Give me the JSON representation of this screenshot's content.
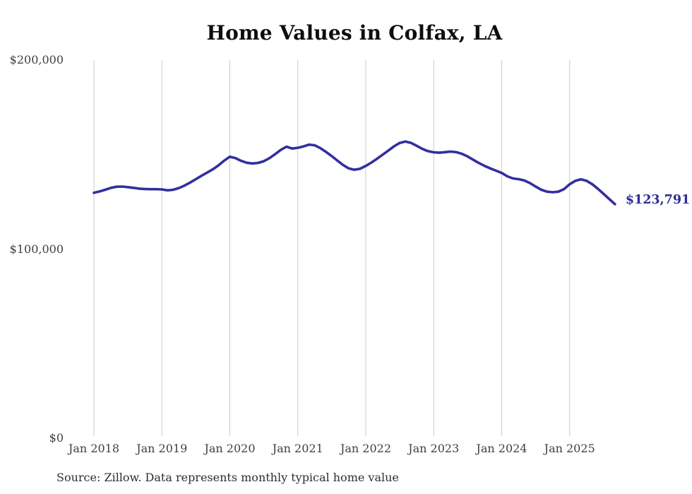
{
  "chart_data": {
    "type": "line",
    "title": "Home Values in Colfax, LA",
    "xlabel": "",
    "ylabel": "",
    "x_start": "2018-01",
    "x_end": "2025-09",
    "x_frequency": "monthly",
    "x_tick_labels": [
      "Jan 2018",
      "Jan 2019",
      "Jan 2020",
      "Jan 2021",
      "Jan 2022",
      "Jan 2023",
      "Jan 2024",
      "Jan 2025"
    ],
    "y_ticks": [
      {
        "label": "$0",
        "value": 0
      },
      {
        "label": "$100,000",
        "value": 100000
      },
      {
        "label": "$200,000",
        "value": 200000
      }
    ],
    "ylim": [
      0,
      200000
    ],
    "grid": "vertical-year-lines-only",
    "legend": "none",
    "line_color": "#332e9e",
    "grid_color": "#cbcbcb",
    "end_label": "$123,791",
    "end_value": 123791,
    "series": [
      {
        "name": "Typical home value",
        "values": [
          129800,
          130500,
          131400,
          132400,
          133000,
          133100,
          132800,
          132400,
          132000,
          131800,
          131700,
          131700,
          131600,
          131100,
          131400,
          132300,
          133600,
          135200,
          137000,
          138800,
          140500,
          142200,
          144300,
          146800,
          148900,
          148100,
          146700,
          145700,
          145300,
          145600,
          146500,
          148100,
          150200,
          152500,
          154200,
          153200,
          153600,
          154300,
          155300,
          154900,
          153400,
          151400,
          149200,
          146800,
          144500,
          142700,
          142000,
          142500,
          144000,
          145800,
          147800,
          150000,
          152200,
          154400,
          156200,
          156900,
          156200,
          154600,
          153000,
          151800,
          151200,
          151000,
          151300,
          151600,
          151300,
          150400,
          149000,
          147200,
          145500,
          144000,
          142700,
          141500,
          140300,
          138500,
          137400,
          137000,
          136300,
          134900,
          133100,
          131400,
          130400,
          130100,
          130400,
          131700,
          134300,
          136100,
          136900,
          136100,
          134300,
          131900,
          129200,
          126500,
          123791
        ]
      }
    ]
  },
  "source_note": "Source: Zillow. Data represents monthly typical home value"
}
